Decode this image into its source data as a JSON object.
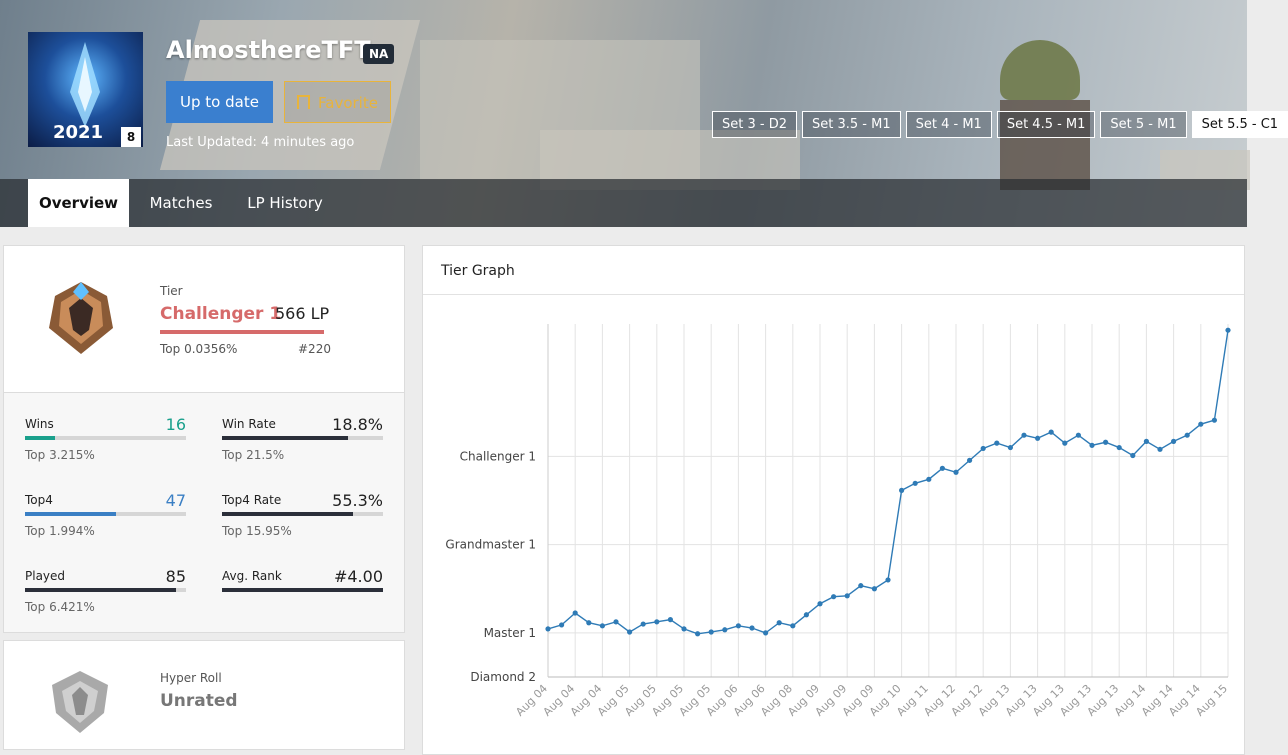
{
  "profile": {
    "avatar_year": "2021",
    "level": "8",
    "name": "AlmosthereTFT",
    "region": "NA",
    "buttons": [
      "Up to date",
      "Favorite"
    ],
    "last_updated": "Last Updated: 4 minutes ago"
  },
  "sets": [
    "Set 3 - D2",
    "Set 3.5 - M1",
    "Set 4 - M1",
    "Set 4.5 - M1",
    "Set 5 - M1",
    "Set 5.5 - C1"
  ],
  "tabs": [
    "Overview",
    "Matches",
    "LP History"
  ],
  "tier": {
    "label": "Tier",
    "rank": "Challenger 1",
    "lp": "566 LP",
    "top": "Top 0.0356%",
    "position": "#220"
  },
  "stats": [
    {
      "label": "Wins",
      "value": "16",
      "top": "Top 3.215%"
    },
    {
      "label": "Win Rate",
      "value": "18.8%",
      "top": "Top 21.5%"
    },
    {
      "label": "Top4",
      "value": "47",
      "top": "Top 1.994%"
    },
    {
      "label": "Top4 Rate",
      "value": "55.3%",
      "top": "Top 15.95%"
    },
    {
      "label": "Played",
      "value": "85",
      "top": "Top 6.421%"
    },
    {
      "label": "Avg. Rank",
      "value": "#4.00"
    }
  ],
  "hyper_roll": {
    "label": "Hyper Roll",
    "rank": "Unrated"
  },
  "chart_data": {
    "type": "line",
    "title": "Tier Graph",
    "categories": [
      "Aug 04",
      null,
      "Aug 04",
      null,
      "Aug 04",
      null,
      "Aug 05",
      null,
      "Aug 05",
      null,
      "Aug 05",
      null,
      "Aug 05",
      null,
      "Aug 06",
      null,
      "Aug 06",
      null,
      "Aug 08",
      null,
      "Aug 09",
      null,
      "Aug 09",
      null,
      "Aug 09",
      null,
      "Aug 10",
      null,
      "Aug 11",
      null,
      "Aug 12",
      null,
      "Aug 12",
      null,
      "Aug 13",
      null,
      "Aug 13",
      null,
      "Aug 13",
      null,
      "Aug 13",
      null,
      "Aug 13",
      null,
      "Aug 14",
      null,
      "Aug 14",
      null,
      "Aug 14",
      null,
      "Aug 15"
    ],
    "values": [
      9,
      18,
      45,
      23,
      16,
      25,
      2,
      20,
      25,
      30,
      9,
      -2,
      2,
      7,
      16,
      11,
      0,
      23,
      16,
      41,
      66,
      82,
      84,
      107,
      100,
      120,
      323,
      339,
      348,
      373,
      364,
      391,
      418,
      430,
      420,
      448,
      441,
      455,
      430,
      448,
      425,
      432,
      420,
      402,
      434,
      416,
      434,
      448,
      473,
      482,
      686
    ],
    "color": "#2f7bb6",
    "ylim": [
      -100,
      700
    ],
    "yticks": [
      {
        "value": -100,
        "label": "Diamond 2"
      },
      {
        "value": 0,
        "label": "Master 1"
      },
      {
        "value": 200,
        "label": "Grandmaster 1"
      },
      {
        "value": 400,
        "label": "Challenger 1"
      }
    ],
    "grid": true
  }
}
